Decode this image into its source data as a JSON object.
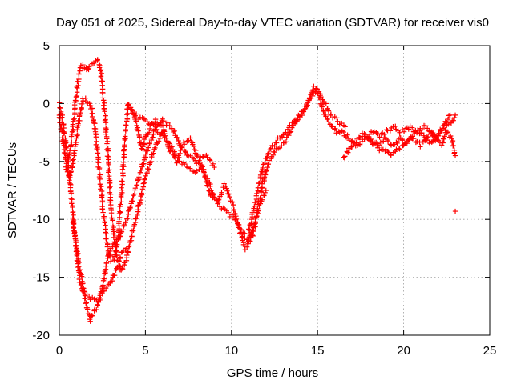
{
  "chart_data": {
    "type": "scatter",
    "title": "Day 051 of 2025, Sidereal Day-to-day VTEC variation (SDTVAR) for receiver vis0",
    "xlabel": "GPS time / hours",
    "ylabel": "SDTVAR / TECUs",
    "xlim": [
      0,
      25
    ],
    "ylim": [
      -20,
      5
    ],
    "xticks": [
      0,
      5,
      10,
      15,
      20,
      25
    ],
    "yticks": [
      -20,
      -15,
      -10,
      -5,
      0,
      5
    ],
    "xtick_labels": [
      "0",
      "5",
      "10",
      "15",
      "20",
      "25"
    ],
    "ytick_labels": [
      "-20",
      "-15",
      "-10",
      "-5",
      "0",
      "5"
    ],
    "grid": true,
    "marker": "+",
    "color": "#ff0000",
    "series": [
      {
        "name": "trace-1",
        "x": [
          0.0,
          0.3,
          0.6,
          0.9,
          1.2,
          1.5,
          1.8,
          2.1,
          2.4,
          2.7,
          3.0,
          3.3,
          3.6,
          3.9
        ],
        "y": [
          0.0,
          -2.5,
          -6.5,
          -11.5,
          -15.5,
          -16.5,
          -16.8,
          -17.0,
          -16.6,
          -16.0,
          -15.5,
          -14.5,
          -13.0,
          -12.5
        ]
      },
      {
        "name": "trace-2",
        "x": [
          0.5,
          0.8,
          1.0,
          1.2,
          1.4,
          1.6,
          1.8,
          2.0,
          2.2,
          2.4,
          2.6,
          2.8,
          3.0,
          3.3,
          3.6,
          3.9,
          4.2,
          4.6,
          5.0,
          5.5,
          6.0
        ],
        "y": [
          -5.0,
          -2.0,
          1.0,
          3.0,
          3.3,
          2.8,
          3.4,
          3.6,
          3.8,
          3.0,
          0.0,
          -4.0,
          -9.0,
          -13.0,
          -14.5,
          -13.5,
          -11.5,
          -9.0,
          -6.5,
          -4.0,
          -2.5
        ]
      },
      {
        "name": "trace-3",
        "x": [
          0.8,
          1.0,
          1.2,
          1.4,
          1.6,
          1.8,
          2.0,
          2.2,
          2.4,
          2.6,
          2.8,
          3.0,
          3.2,
          3.5,
          3.8,
          4.1,
          4.4,
          4.7,
          5.0,
          5.5,
          6.0,
          6.5,
          7.0,
          7.5,
          8.0,
          8.5,
          9.0
        ],
        "y": [
          -10.0,
          -12.5,
          -14.5,
          -16.0,
          -17.5,
          -18.7,
          -18.0,
          -17.5,
          -16.5,
          -15.0,
          -13.5,
          -12.5,
          -12.0,
          -11.5,
          -10.5,
          -9.0,
          -7.5,
          -6.0,
          -4.5,
          -2.5,
          -1.5,
          -2.0,
          -3.5,
          -4.5,
          -5.0,
          -4.5,
          -5.5
        ]
      },
      {
        "name": "trace-4",
        "x": [
          0.0,
          0.2,
          0.4,
          0.6,
          0.8,
          1.0,
          1.2,
          1.4,
          1.6,
          1.8,
          2.0,
          2.2,
          2.4,
          2.6,
          2.8,
          3.0,
          3.2,
          3.4,
          3.6,
          3.8,
          4.0,
          4.2,
          4.4,
          4.6,
          4.8,
          5.0,
          5.3,
          5.6,
          6.0,
          6.4,
          6.8,
          7.2,
          7.6,
          8.0,
          8.4,
          8.8,
          9.2,
          9.6,
          10.0,
          10.4,
          10.8,
          11.2,
          11.6,
          12.0
        ],
        "y": [
          -1.0,
          -3.0,
          -5.5,
          -6.5,
          -5.0,
          -3.0,
          -1.0,
          0.5,
          0.3,
          0.0,
          -1.5,
          -4.0,
          -7.0,
          -10.0,
          -12.5,
          -13.5,
          -13.5,
          -11.5,
          -8.0,
          -3.5,
          0.0,
          -0.5,
          -1.0,
          -2.5,
          -4.0,
          -3.0,
          -2.0,
          -1.5,
          -2.0,
          -4.0,
          -5.0,
          -3.5,
          -3.0,
          -4.5,
          -6.0,
          -8.0,
          -8.5,
          -7.0,
          -8.5,
          -10.5,
          -12.5,
          -11.5,
          -9.0,
          -7.5
        ]
      },
      {
        "name": "trace-5",
        "x": [
          4.0,
          4.3,
          4.6,
          5.0,
          5.4,
          5.8,
          6.2,
          6.6,
          7.0,
          7.4,
          7.8,
          8.2,
          8.6,
          9.0,
          9.4,
          9.8,
          10.2,
          10.6,
          11.0,
          11.4,
          11.8,
          12.2,
          12.6,
          13.0,
          13.4,
          13.8,
          14.2,
          14.6,
          15.0,
          15.4,
          15.8,
          16.2,
          16.6
        ],
        "y": [
          -0.3,
          -0.8,
          -1.2,
          -1.5,
          -1.8,
          -2.5,
          -3.0,
          -4.0,
          -5.0,
          -5.5,
          -6.0,
          -5.5,
          -6.5,
          -8.0,
          -9.0,
          -9.5,
          -10.0,
          -11.0,
          -12.0,
          -10.0,
          -7.0,
          -5.0,
          -4.0,
          -3.5,
          -2.5,
          -1.5,
          -0.5,
          0.5,
          1.2,
          0.0,
          -1.0,
          -1.5,
          -2.0
        ]
      },
      {
        "name": "trace-6",
        "x": [
          11.0,
          11.3,
          11.6,
          11.9,
          12.2,
          12.5,
          12.8,
          13.1,
          13.4,
          13.7,
          14.0,
          14.3,
          14.6,
          14.8,
          15.0,
          15.3,
          15.6,
          15.9,
          16.2,
          16.5,
          16.8,
          17.1,
          17.4,
          17.7,
          18.0,
          18.3,
          18.6,
          18.9,
          19.2,
          19.5,
          19.8,
          20.1,
          20.4,
          20.7,
          21.0,
          21.3,
          21.6,
          21.9,
          22.2,
          22.5,
          22.8,
          23.0
        ],
        "y": [
          -11.0,
          -9.0,
          -7.0,
          -5.0,
          -4.0,
          -3.5,
          -3.0,
          -2.5,
          -2.0,
          -1.5,
          -1.0,
          -0.5,
          0.5,
          1.5,
          1.0,
          -0.5,
          -1.5,
          -2.0,
          -2.5,
          -2.5,
          -3.0,
          -3.5,
          -3.5,
          -3.0,
          -3.0,
          -3.5,
          -3.5,
          -3.0,
          -3.5,
          -3.5,
          -3.0,
          -3.5,
          -3.0,
          -2.5,
          -2.5,
          -3.0,
          -3.5,
          -3.0,
          -2.5,
          -2.0,
          -1.5,
          -1.0
        ]
      },
      {
        "name": "trace-7",
        "x": [
          16.5,
          16.8,
          17.1,
          17.4,
          17.7,
          18.0,
          18.3,
          18.6,
          18.9,
          19.2,
          19.5,
          19.8,
          20.1,
          20.4,
          20.7,
          21.0,
          21.3,
          21.6,
          21.9,
          22.2,
          22.5,
          22.8,
          23.0
        ],
        "y": [
          -4.8,
          -4.0,
          -3.5,
          -3.0,
          -2.5,
          -3.0,
          -3.5,
          -4.0,
          -4.0,
          -4.5,
          -4.2,
          -3.8,
          -3.5,
          -3.0,
          -3.2,
          -3.6,
          -3.0,
          -2.5,
          -3.0,
          -3.5,
          -2.5,
          -3.0,
          -4.5
        ]
      },
      {
        "name": "trace-8",
        "x": [
          18.0,
          18.3,
          18.6,
          18.9,
          19.2,
          19.5,
          19.8,
          20.1,
          20.4,
          20.7,
          21.0,
          21.3,
          21.6,
          21.9,
          22.2,
          22.5,
          22.7
        ],
        "y": [
          -2.5,
          -2.3,
          -2.8,
          -2.5,
          -2.2,
          -2.0,
          -2.5,
          -2.2,
          -2.0,
          -2.5,
          -2.2,
          -2.0,
          -2.5,
          -2.8,
          -2.2,
          -1.5,
          -1.0
        ]
      },
      {
        "name": "outlier",
        "x": [
          23.0
        ],
        "y": [
          -9.3
        ]
      }
    ]
  }
}
